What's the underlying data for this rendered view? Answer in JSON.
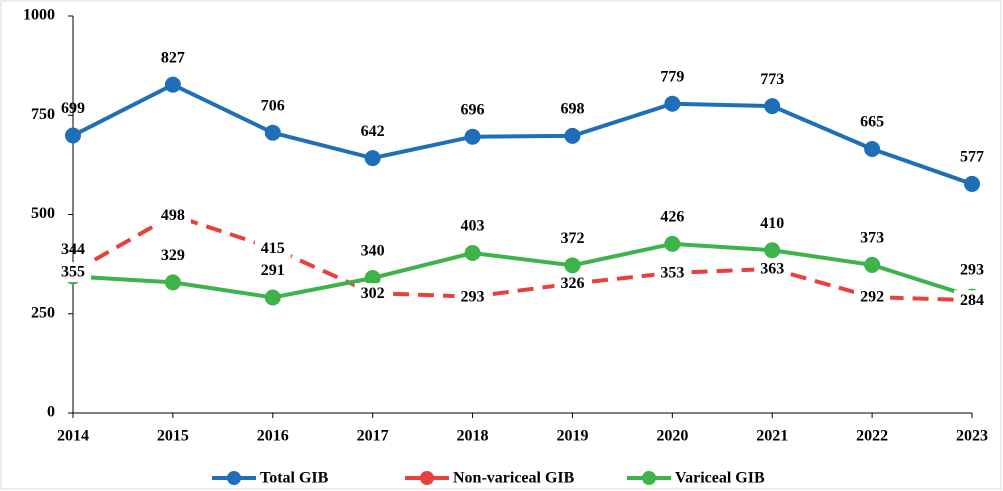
{
  "chart_data": {
    "type": "line",
    "categories": [
      "2014",
      "2015",
      "2016",
      "2017",
      "2018",
      "2019",
      "2020",
      "2021",
      "2022",
      "2023"
    ],
    "series": [
      {
        "name": "Total GIB",
        "color": "#1f6fb8",
        "style": "solid",
        "label_position": "above",
        "values": [
          699,
          827,
          706,
          642,
          696,
          698,
          779,
          773,
          665,
          577
        ]
      },
      {
        "name": "Non-variceal GIB",
        "color": "#e8403a",
        "style": "dashed",
        "label_position": "center",
        "values": [
          355,
          498,
          415,
          302,
          293,
          326,
          353,
          363,
          292,
          284
        ]
      },
      {
        "name": "Variceal GIB",
        "color": "#3db34a",
        "style": "solid",
        "label_position": "above",
        "values": [
          344,
          329,
          291,
          340,
          403,
          372,
          426,
          410,
          373,
          293
        ]
      }
    ],
    "ylim": [
      0,
      1000
    ],
    "yticks": [
      0,
      250,
      500,
      750,
      1000
    ],
    "grid": false,
    "legend": "bottom"
  }
}
